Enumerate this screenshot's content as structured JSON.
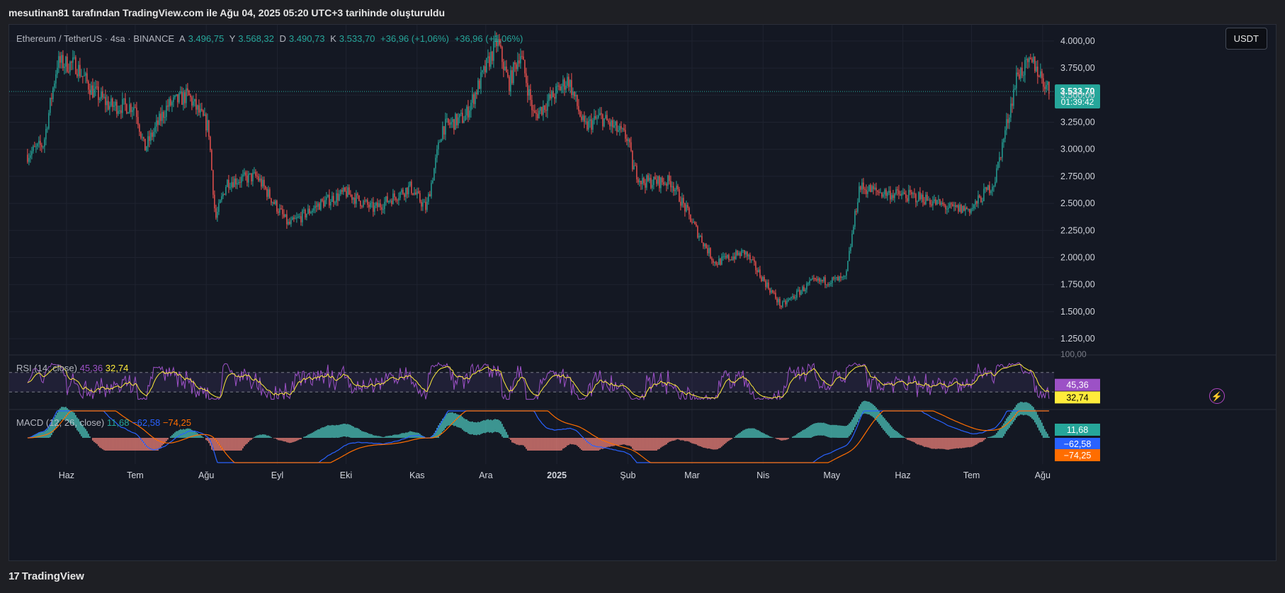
{
  "caption": "mesutinan81 tarafından TradingView.com ile Ağu 04, 2025 05:20 UTC+3 tarihinde oluşturuldu",
  "legend": {
    "symbol": "Ethereum / TetherUS · 4sa · BINANCE",
    "o_label": "A",
    "o_value": "3.496,75",
    "h_label": "Y",
    "h_value": "3.568,32",
    "l_label": "D",
    "l_value": "3.490,73",
    "c_label": "K",
    "c_value": "3.533,70",
    "change": "+36,96 (+1,06%)",
    "change2": "+36,96 (+1,06%)"
  },
  "currency_button": "USDT",
  "price_tag": {
    "price": "3.533,70",
    "countdown": "01:39:42"
  },
  "rsi": {
    "label": "RSI (14, close)",
    "value1": "45,36",
    "value2": "32,74",
    "tick_top": "100,00"
  },
  "macd": {
    "label": "MACD (12, 26, close)",
    "value1": "11,68",
    "value2": "−62,58",
    "value3": "−74,25"
  },
  "footer": {
    "brand": "TradingView",
    "mark": "17"
  },
  "colors": {
    "up": "#26a69a",
    "down": "#ef5350",
    "rsi": "#9c51c6",
    "rsi_ma": "#ffeb3b",
    "macd": "#2962ff",
    "signal": "#ff6d00",
    "bg": "#141823"
  },
  "chart_data": {
    "type": "candlestick",
    "title": "Ethereum / TetherUS · 4sa · BINANCE",
    "ylim": [
      1100,
      4150
    ],
    "yticks": [
      4000,
      3750,
      3500,
      3250,
      3000,
      2750,
      2500,
      2250,
      2000,
      1750,
      1500,
      1250
    ],
    "ytick_labels": [
      "4.000,00",
      "3.750,00",
      "3.500,00",
      "3.250,00",
      "3.000,00",
      "2.750,00",
      "2.500,00",
      "2.250,00",
      "2.000,00",
      "1.750,00",
      "1.500,00",
      "1.250,00"
    ],
    "x_labels": [
      "Haz",
      "Tem",
      "Ağu",
      "Eyl",
      "Eki",
      "Kas",
      "Ara",
      "2025",
      "Şub",
      "Mar",
      "Nis",
      "May",
      "Haz",
      "Tem",
      "Ağu"
    ],
    "x_label_bold": "2025",
    "price_path": {
      "dates": [
        "2024-05-15",
        "2024-05-22",
        "2024-05-28",
        "2024-06-05",
        "2024-06-12",
        "2024-06-20",
        "2024-07-01",
        "2024-07-05",
        "2024-07-15",
        "2024-07-24",
        "2024-08-02",
        "2024-08-05",
        "2024-08-10",
        "2024-08-23",
        "2024-09-06",
        "2024-09-20",
        "2024-10-01",
        "2024-10-13",
        "2024-10-29",
        "2024-11-05",
        "2024-11-12",
        "2024-11-22",
        "2024-12-06",
        "2024-12-11",
        "2024-12-16",
        "2024-12-22",
        "2025-01-06",
        "2025-01-13",
        "2025-01-20",
        "2025-02-01",
        "2025-02-03",
        "2025-02-07",
        "2025-02-20",
        "2025-03-03",
        "2025-03-11",
        "2025-03-24",
        "2025-04-01",
        "2025-04-09",
        "2025-04-22",
        "2025-05-07",
        "2025-05-13",
        "2025-05-23",
        "2025-06-10",
        "2025-06-22",
        "2025-07-01",
        "2025-07-11",
        "2025-07-21",
        "2025-07-28",
        "2025-08-04"
      ],
      "close": [
        2950,
        3050,
        3800,
        3780,
        3550,
        3400,
        3400,
        3000,
        3400,
        3500,
        3200,
        2350,
        2700,
        2750,
        2300,
        2500,
        2600,
        2450,
        2650,
        2450,
        3200,
        3300,
        4000,
        3600,
        3900,
        3300,
        3650,
        3200,
        3300,
        3100,
        2850,
        2700,
        2700,
        2250,
        1950,
        2050,
        1800,
        1550,
        1770,
        1800,
        2650,
        2600,
        2550,
        2450,
        2450,
        2700,
        3700,
        3800,
        3533.7
      ]
    },
    "series": [
      {
        "name": "RSI",
        "ylim": [
          0,
          100
        ],
        "bands": [
          30,
          70
        ],
        "last": 45.36
      },
      {
        "name": "MACD",
        "last": -62.58
      },
      {
        "name": "Signal",
        "last": -74.25
      },
      {
        "name": "Histogram",
        "last": 11.68
      }
    ]
  }
}
